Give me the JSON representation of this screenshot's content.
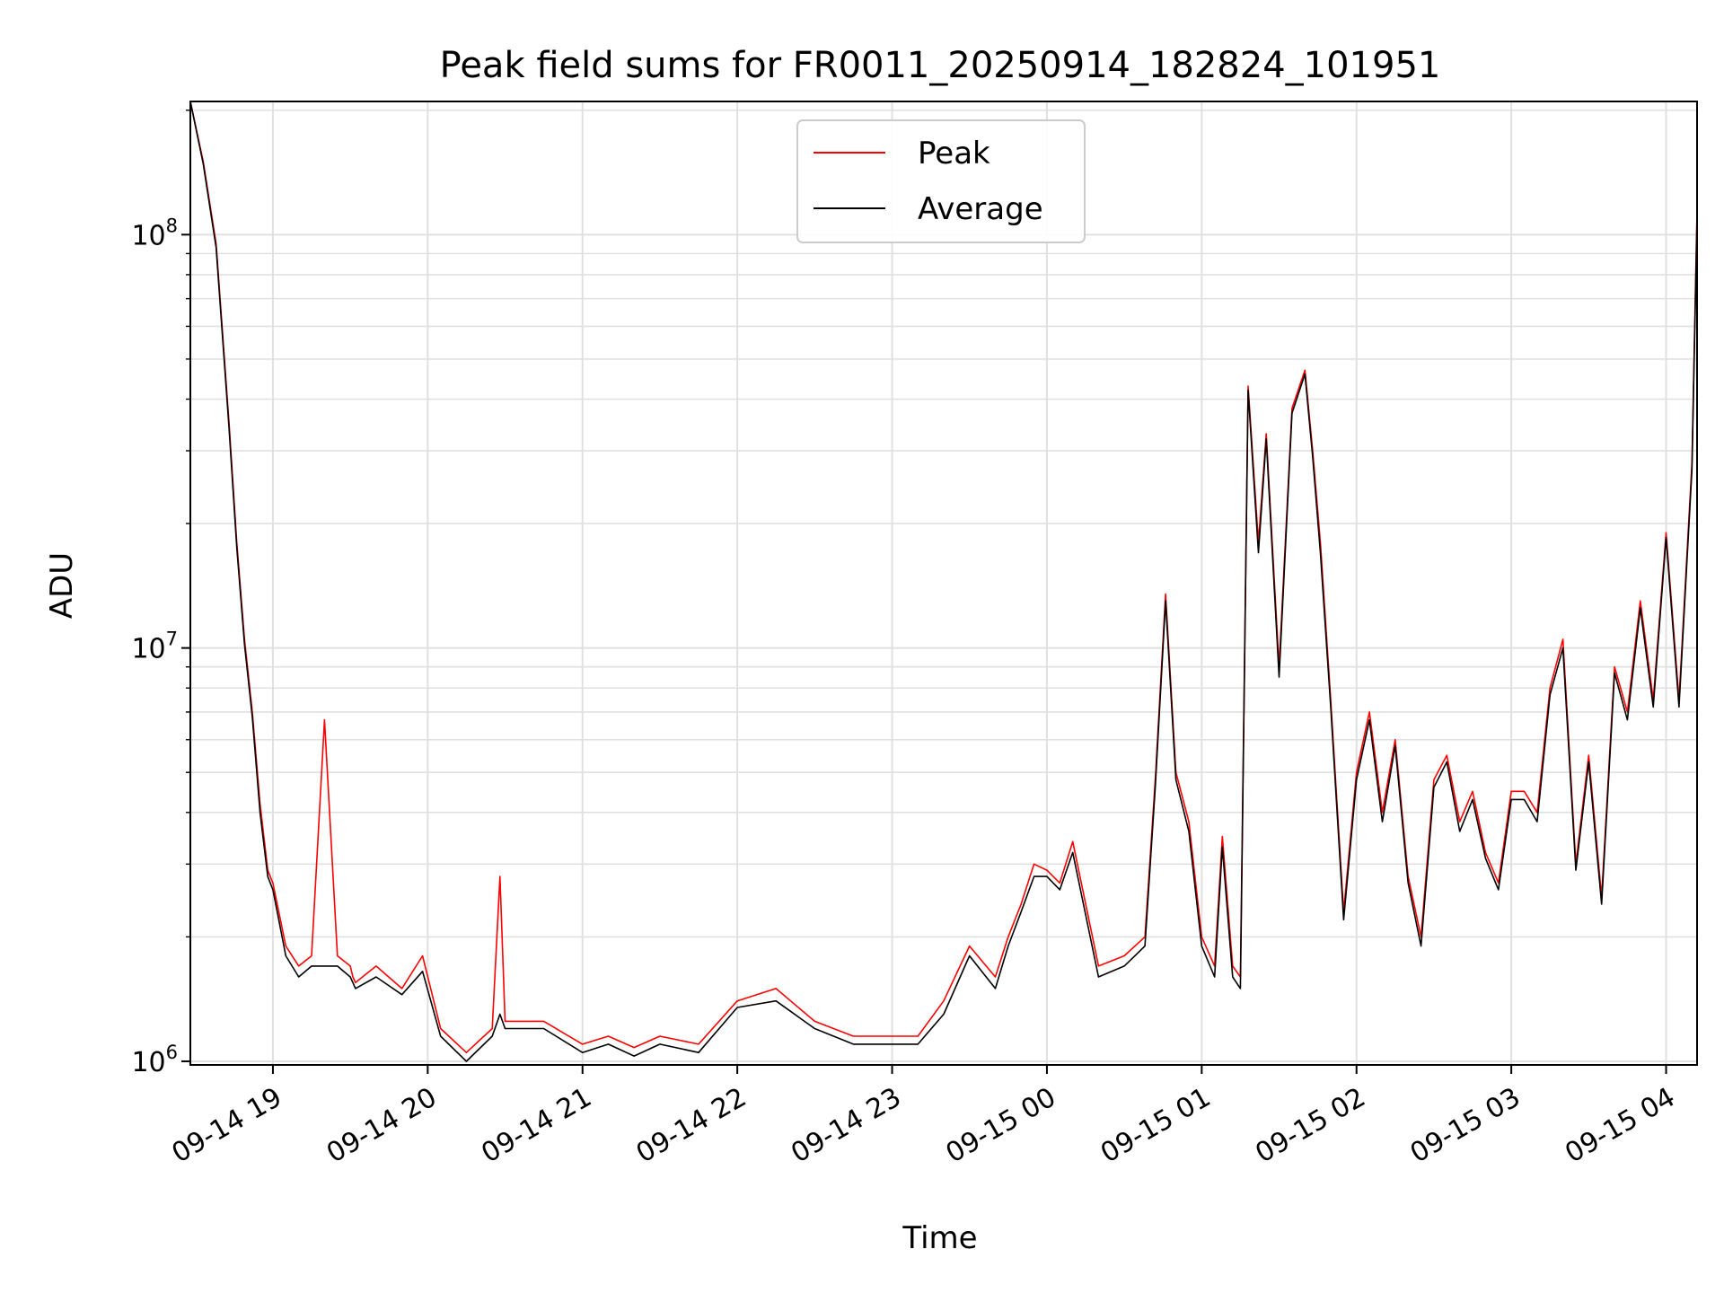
{
  "colors": {
    "peak": "#ff0000",
    "average": "#000000",
    "grid": "#e0e0e0",
    "axes": "#000000"
  },
  "chart_data": {
    "type": "line",
    "title": "Peak field sums for FR0011_20250914_182824_101951",
    "xlabel": "Time",
    "ylabel": "ADU",
    "yscale": "log",
    "xlim": [
      "2025-09-14 18:28",
      "2025-09-15 04:12"
    ],
    "ylim": [
      980000,
      210000000
    ],
    "grid": true,
    "legend_position": "upper center",
    "x_ticks": [
      "09-14 19",
      "09-14 20",
      "09-14 21",
      "09-14 22",
      "09-14 23",
      "09-15 00",
      "09-15 01",
      "09-15 02",
      "09-15 03",
      "09-15 04"
    ],
    "y_ticks": [
      {
        "base": "10",
        "exp": "6",
        "value": 1000000
      },
      {
        "base": "10",
        "exp": "7",
        "value": 10000000
      },
      {
        "base": "10",
        "exp": "8",
        "value": 100000000
      }
    ],
    "series": [
      {
        "name": "Peak",
        "color": "#ff0000",
        "x": [
          "2025-09-14 18:28",
          "2025-09-14 18:33",
          "2025-09-14 18:38",
          "2025-09-14 18:43",
          "2025-09-14 18:46",
          "2025-09-14 18:49",
          "2025-09-14 18:52",
          "2025-09-14 18:55",
          "2025-09-14 18:58",
          "2025-09-14 19:00",
          "2025-09-14 19:05",
          "2025-09-14 19:10",
          "2025-09-14 19:15",
          "2025-09-14 19:20",
          "2025-09-14 19:25",
          "2025-09-14 19:30",
          "2025-09-14 19:31",
          "2025-09-14 19:32",
          "2025-09-14 19:40",
          "2025-09-14 19:50",
          "2025-09-14 19:58",
          "2025-09-14 20:05",
          "2025-09-14 20:15",
          "2025-09-14 20:25",
          "2025-09-14 20:28",
          "2025-09-14 20:30",
          "2025-09-14 20:45",
          "2025-09-14 21:00",
          "2025-09-14 21:10",
          "2025-09-14 21:20",
          "2025-09-14 21:30",
          "2025-09-14 21:45",
          "2025-09-14 22:00",
          "2025-09-14 22:15",
          "2025-09-14 22:30",
          "2025-09-14 22:45",
          "2025-09-14 23:00",
          "2025-09-14 23:10",
          "2025-09-14 23:20",
          "2025-09-14 23:30",
          "2025-09-14 23:40",
          "2025-09-14 23:45",
          "2025-09-14 23:50",
          "2025-09-14 23:55",
          "2025-09-15 00:00",
          "2025-09-15 00:05",
          "2025-09-15 00:10",
          "2025-09-15 00:20",
          "2025-09-15 00:30",
          "2025-09-15 00:38",
          "2025-09-15 00:42",
          "2025-09-15 00:46",
          "2025-09-15 00:50",
          "2025-09-15 00:55",
          "2025-09-15 01:00",
          "2025-09-15 01:05",
          "2025-09-15 01:08",
          "2025-09-15 01:12",
          "2025-09-15 01:15",
          "2025-09-15 01:18",
          "2025-09-15 01:22",
          "2025-09-15 01:25",
          "2025-09-15 01:30",
          "2025-09-15 01:35",
          "2025-09-15 01:40",
          "2025-09-15 01:43",
          "2025-09-15 01:46",
          "2025-09-15 01:50",
          "2025-09-15 01:55",
          "2025-09-15 02:00",
          "2025-09-15 02:05",
          "2025-09-15 02:10",
          "2025-09-15 02:15",
          "2025-09-15 02:20",
          "2025-09-15 02:25",
          "2025-09-15 02:30",
          "2025-09-15 02:35",
          "2025-09-15 02:40",
          "2025-09-15 02:45",
          "2025-09-15 02:50",
          "2025-09-15 02:55",
          "2025-09-15 03:00",
          "2025-09-15 03:05",
          "2025-09-15 03:10",
          "2025-09-15 03:15",
          "2025-09-15 03:20",
          "2025-09-15 03:25",
          "2025-09-15 03:30",
          "2025-09-15 03:35",
          "2025-09-15 03:40",
          "2025-09-15 03:45",
          "2025-09-15 03:50",
          "2025-09-15 03:55",
          "2025-09-15 04:00",
          "2025-09-15 04:05",
          "2025-09-15 04:10",
          "2025-09-15 04:12"
        ],
        "values": [
          210000000,
          150000000,
          95000000,
          35000000,
          18000000,
          10500000,
          7000000,
          4200000,
          2900000,
          2700000,
          1900000,
          1700000,
          1800000,
          6700000,
          1800000,
          1700000,
          1600000,
          1550000,
          1700000,
          1500000,
          1800000,
          1200000,
          1050000,
          1200000,
          2800000,
          1250000,
          1250000,
          1100000,
          1150000,
          1080000,
          1150000,
          1100000,
          1400000,
          1500000,
          1250000,
          1150000,
          1150000,
          1150000,
          1400000,
          1900000,
          1600000,
          2000000,
          2400000,
          3000000,
          2900000,
          2700000,
          3400000,
          1700000,
          1800000,
          2000000,
          4800000,
          13500000,
          5000000,
          3800000,
          2000000,
          1700000,
          3500000,
          1700000,
          1600000,
          43000000,
          18000000,
          33000000,
          9000000,
          38000000,
          47000000,
          30000000,
          18000000,
          7500000,
          2300000,
          5000000,
          7000000,
          4000000,
          6000000,
          2800000,
          2000000,
          4800000,
          5500000,
          3800000,
          4500000,
          3200000,
          2700000,
          4500000,
          4500000,
          4000000,
          8000000,
          10500000,
          3000000,
          5500000,
          2500000,
          9000000,
          7000000,
          13000000,
          7500000,
          19000000,
          7500000,
          28000000,
          115000000
        ]
      },
      {
        "name": "Average",
        "color": "#000000",
        "x": [
          "2025-09-14 18:28",
          "2025-09-14 18:33",
          "2025-09-14 18:38",
          "2025-09-14 18:43",
          "2025-09-14 18:46",
          "2025-09-14 18:49",
          "2025-09-14 18:52",
          "2025-09-14 18:55",
          "2025-09-14 18:58",
          "2025-09-14 19:00",
          "2025-09-14 19:05",
          "2025-09-14 19:10",
          "2025-09-14 19:15",
          "2025-09-14 19:20",
          "2025-09-14 19:25",
          "2025-09-14 19:30",
          "2025-09-14 19:31",
          "2025-09-14 19:32",
          "2025-09-14 19:40",
          "2025-09-14 19:50",
          "2025-09-14 19:58",
          "2025-09-14 20:05",
          "2025-09-14 20:15",
          "2025-09-14 20:25",
          "2025-09-14 20:28",
          "2025-09-14 20:30",
          "2025-09-14 20:45",
          "2025-09-14 21:00",
          "2025-09-14 21:10",
          "2025-09-14 21:20",
          "2025-09-14 21:30",
          "2025-09-14 21:45",
          "2025-09-14 22:00",
          "2025-09-14 22:15",
          "2025-09-14 22:30",
          "2025-09-14 22:45",
          "2025-09-14 23:00",
          "2025-09-14 23:10",
          "2025-09-14 23:20",
          "2025-09-14 23:30",
          "2025-09-14 23:40",
          "2025-09-14 23:45",
          "2025-09-14 23:50",
          "2025-09-14 23:55",
          "2025-09-15 00:00",
          "2025-09-15 00:05",
          "2025-09-15 00:10",
          "2025-09-15 00:20",
          "2025-09-15 00:30",
          "2025-09-15 00:38",
          "2025-09-15 00:42",
          "2025-09-15 00:46",
          "2025-09-15 00:50",
          "2025-09-15 00:55",
          "2025-09-15 01:00",
          "2025-09-15 01:05",
          "2025-09-15 01:08",
          "2025-09-15 01:12",
          "2025-09-15 01:15",
          "2025-09-15 01:18",
          "2025-09-15 01:22",
          "2025-09-15 01:25",
          "2025-09-15 01:30",
          "2025-09-15 01:35",
          "2025-09-15 01:40",
          "2025-09-15 01:43",
          "2025-09-15 01:46",
          "2025-09-15 01:50",
          "2025-09-15 01:55",
          "2025-09-15 02:00",
          "2025-09-15 02:05",
          "2025-09-15 02:10",
          "2025-09-15 02:15",
          "2025-09-15 02:20",
          "2025-09-15 02:25",
          "2025-09-15 02:30",
          "2025-09-15 02:35",
          "2025-09-15 02:40",
          "2025-09-15 02:45",
          "2025-09-15 02:50",
          "2025-09-15 02:55",
          "2025-09-15 03:00",
          "2025-09-15 03:05",
          "2025-09-15 03:10",
          "2025-09-15 03:15",
          "2025-09-15 03:20",
          "2025-09-15 03:25",
          "2025-09-15 03:30",
          "2025-09-15 03:35",
          "2025-09-15 03:40",
          "2025-09-15 03:45",
          "2025-09-15 03:50",
          "2025-09-15 03:55",
          "2025-09-15 04:00",
          "2025-09-15 04:05",
          "2025-09-15 04:10",
          "2025-09-15 04:12"
        ],
        "values": [
          210000000,
          148000000,
          93000000,
          34000000,
          17500000,
          10200000,
          6800000,
          4000000,
          2800000,
          2600000,
          1800000,
          1600000,
          1700000,
          1700000,
          1700000,
          1600000,
          1550000,
          1500000,
          1600000,
          1450000,
          1650000,
          1150000,
          1000000,
          1150000,
          1300000,
          1200000,
          1200000,
          1050000,
          1100000,
          1030000,
          1100000,
          1050000,
          1350000,
          1400000,
          1200000,
          1100000,
          1100000,
          1100000,
          1300000,
          1800000,
          1500000,
          1900000,
          2300000,
          2800000,
          2800000,
          2600000,
          3200000,
          1600000,
          1700000,
          1900000,
          4600000,
          13000000,
          4800000,
          3600000,
          1900000,
          1600000,
          3300000,
          1600000,
          1500000,
          42000000,
          17000000,
          32000000,
          8500000,
          37000000,
          46000000,
          29000000,
          17000000,
          7200000,
          2200000,
          4800000,
          6700000,
          3800000,
          5800000,
          2700000,
          1900000,
          4600000,
          5300000,
          3600000,
          4300000,
          3100000,
          2600000,
          4300000,
          4300000,
          3800000,
          7700000,
          10000000,
          2900000,
          5300000,
          2400000,
          8700000,
          6700000,
          12500000,
          7200000,
          18500000,
          7200000,
          27000000,
          110000000
        ]
      }
    ]
  }
}
